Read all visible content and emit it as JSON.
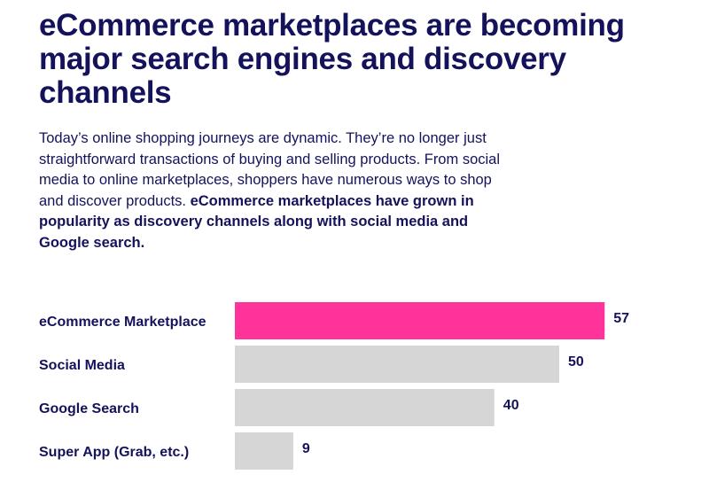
{
  "heading": "eCommerce marketplaces are becoming major search engines and discovery channels",
  "intro": {
    "text": "Today’s online shopping journeys are dynamic. They’re no longer just straightforward transactions of buying and selling products. From social media to online marketplaces, shoppers have numerous ways to shop and discover products. ",
    "bold": "eCommerce marketplaces have grown in popularity as discovery channels along with social media and Google search."
  },
  "colors": {
    "text": "#15125c",
    "highlight": "#ff3399",
    "bar": "#d6d6d6"
  },
  "chart_data": {
    "type": "bar",
    "orientation": "horizontal",
    "categories": [
      "eCommerce Marketplace",
      "Social Media",
      "Google Search",
      "Super App (Grab, etc.)"
    ],
    "values": [
      57,
      50,
      40,
      9
    ],
    "highlighted": "eCommerce Marketplace",
    "title": "",
    "xlabel": "",
    "ylabel": "",
    "grid": false
  }
}
